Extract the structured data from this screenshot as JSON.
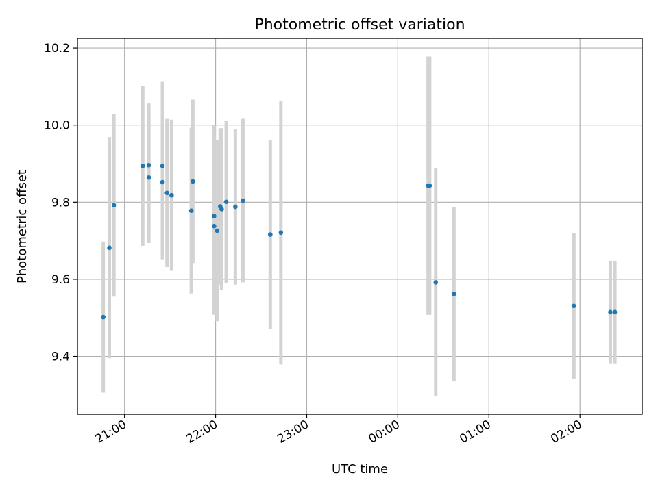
{
  "chart_data": {
    "type": "scatter",
    "title": "Photometric offset variation",
    "xlabel": "UTC time",
    "ylabel": "Photometric offset",
    "xlim": [
      "20:29",
      "02:41"
    ],
    "ylim": [
      9.25,
      10.225
    ],
    "grid": true,
    "x_ticks": [
      "21:00",
      "22:00",
      "23:00",
      "00:00",
      "01:00",
      "02:00"
    ],
    "y_ticks": [
      9.4,
      9.6,
      9.8,
      10.0,
      10.2
    ],
    "y_tick_labels": [
      "9.4",
      "9.6",
      "9.8",
      "10.0",
      "10.2"
    ],
    "series": [
      {
        "marker_color": "#1f77b4",
        "errorbar_color": "#d3d3d3",
        "points": [
          {
            "x": "20:46",
            "y": 9.502,
            "err": 0.196
          },
          {
            "x": "20:50",
            "y": 9.682,
            "err": 0.287
          },
          {
            "x": "20:53",
            "y": 9.792,
            "err": 0.237
          },
          {
            "x": "21:12",
            "y": 9.894,
            "err": 0.207
          },
          {
            "x": "21:16",
            "y": 9.896,
            "err": 0.16
          },
          {
            "x": "21:16",
            "y": 9.864,
            "err": 0.17
          },
          {
            "x": "21:25",
            "y": 9.852,
            "err": 0.2
          },
          {
            "x": "21:25",
            "y": 9.894,
            "err": 0.218
          },
          {
            "x": "21:28",
            "y": 9.824,
            "err": 0.192
          },
          {
            "x": "21:31",
            "y": 9.818,
            "err": 0.196
          },
          {
            "x": "21:44",
            "y": 9.778,
            "err": 0.215
          },
          {
            "x": "21:45",
            "y": 9.854,
            "err": 0.212
          },
          {
            "x": "21:59",
            "y": 9.738,
            "err": 0.23
          },
          {
            "x": "21:59",
            "y": 9.764,
            "err": 0.235
          },
          {
            "x": "22:01",
            "y": 9.726,
            "err": 0.235
          },
          {
            "x": "22:03",
            "y": 9.789,
            "err": 0.203
          },
          {
            "x": "22:04",
            "y": 9.782,
            "err": 0.21
          },
          {
            "x": "22:07",
            "y": 9.801,
            "err": 0.21
          },
          {
            "x": "22:13",
            "y": 9.788,
            "err": 0.202
          },
          {
            "x": "22:18",
            "y": 9.804,
            "err": 0.212
          },
          {
            "x": "22:36",
            "y": 9.716,
            "err": 0.245
          },
          {
            "x": "22:43",
            "y": 9.721,
            "err": 0.342
          },
          {
            "x": "00:20",
            "y": 9.843,
            "err": 0.335
          },
          {
            "x": "00:21",
            "y": 9.843,
            "err": 0.335
          },
          {
            "x": "00:25",
            "y": 9.592,
            "err": 0.296
          },
          {
            "x": "00:37",
            "y": 9.562,
            "err": 0.226
          },
          {
            "x": "01:56",
            "y": 9.531,
            "err": 0.189
          },
          {
            "x": "02:20",
            "y": 9.515,
            "err": 0.133
          },
          {
            "x": "02:23",
            "y": 9.515,
            "err": 0.133
          }
        ]
      }
    ]
  }
}
